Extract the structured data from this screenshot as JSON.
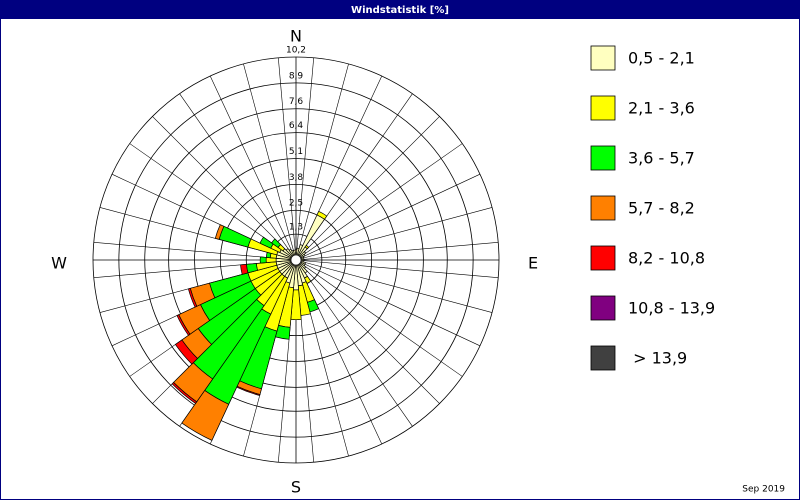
{
  "chart_data": {
    "type": "windrose",
    "title": "Windstatistik [%]",
    "annotation": "Sep 2019",
    "direction_labels": [
      "N",
      "E",
      "S",
      "W"
    ],
    "ylim": [
      0,
      10.2
    ],
    "yticks": [
      {
        "value": 1.3,
        "label": "1,3"
      },
      {
        "value": 2.5,
        "label": "2,5"
      },
      {
        "value": 3.8,
        "label": "3,8"
      },
      {
        "value": 5.1,
        "label": "5,1"
      },
      {
        "value": 6.4,
        "label": "6,4"
      },
      {
        "value": 7.6,
        "label": "7,6"
      },
      {
        "value": 8.9,
        "label": "8,9"
      },
      {
        "value": 10.2,
        "label": "10,2"
      }
    ],
    "series": [
      {
        "name": "0,5 - 2,1",
        "color": "#ffffc0",
        "values": [
          0.5,
          0.6,
          0.8,
          2.5,
          0.8,
          0.6,
          0.5,
          0.4,
          0.4,
          0.4,
          0.4,
          0.5,
          0.5,
          0.6,
          0.8,
          1.0,
          1.2,
          1.3,
          1.5,
          1.4,
          1.2,
          1.0,
          1.0,
          1.0,
          1.0,
          1.0,
          1.0,
          1.0,
          1.0,
          1.0,
          0.9,
          0.8,
          0.7,
          0.6,
          0.5,
          0.5
        ]
      },
      {
        "name": "2,1 - 3,6",
        "color": "#ffff00",
        "values": [
          0,
          0,
          0,
          0.2,
          0.1,
          0,
          0,
          0,
          0,
          0,
          0,
          0,
          0,
          0,
          0,
          0.3,
          1.0,
          1.5,
          1.5,
          2.0,
          2.5,
          2.0,
          1.8,
          1.5,
          1.5,
          1.5,
          1.0,
          0.5,
          0.3,
          1.5,
          0.5,
          0.3,
          0,
          0,
          0,
          0
        ]
      },
      {
        "name": "3,6 - 5,7",
        "color": "#00ff00",
        "values": [
          0,
          0,
          0,
          0,
          0,
          0,
          0,
          0,
          0,
          0,
          0,
          0,
          0,
          0,
          0,
          0,
          0.5,
          0,
          0,
          0.6,
          3.0,
          5.0,
          4.5,
          3.5,
          2.8,
          2.0,
          0.5,
          0.3,
          0.2,
          1.5,
          0.6,
          0.4,
          0,
          0,
          0,
          0
        ]
      },
      {
        "name": "5,7 - 8,2",
        "color": "#ff8000",
        "values": [
          0,
          0,
          0,
          0,
          0,
          0,
          0,
          0,
          0,
          0,
          0,
          0,
          0,
          0,
          0,
          0,
          0,
          0,
          0,
          0,
          0.3,
          2.0,
          1.4,
          1.0,
          1.2,
          1.0,
          0,
          0,
          0,
          0.2,
          0,
          0,
          0,
          0,
          0,
          0
        ]
      },
      {
        "name": "8,2 - 10,8",
        "color": "#ff0000",
        "values": [
          0,
          0,
          0,
          0,
          0,
          0,
          0,
          0,
          0,
          0,
          0,
          0,
          0,
          0,
          0,
          0,
          0,
          0,
          0,
          0,
          0.05,
          0,
          0.1,
          0.4,
          0.1,
          0.1,
          0.3,
          0,
          0,
          0,
          0,
          0,
          0,
          0,
          0,
          0
        ]
      },
      {
        "name": "10,8 - 13,9",
        "color": "#800080",
        "values": [
          0,
          0,
          0,
          0,
          0,
          0,
          0,
          0,
          0,
          0,
          0,
          0,
          0,
          0,
          0,
          0,
          0,
          0,
          0,
          0,
          0,
          0,
          0,
          0,
          0,
          0,
          0,
          0,
          0,
          0,
          0,
          0,
          0,
          0,
          0,
          0
        ]
      },
      {
        "name": " > 13,9",
        "color": "#404040",
        "values": [
          0,
          0,
          0,
          0,
          0,
          0,
          0,
          0,
          0,
          0,
          0,
          0,
          0,
          0,
          0,
          0,
          0,
          0,
          0,
          0,
          0,
          0,
          0,
          0,
          0,
          0,
          0,
          0,
          0,
          0,
          0,
          0,
          0,
          0,
          0,
          0
        ]
      }
    ]
  }
}
